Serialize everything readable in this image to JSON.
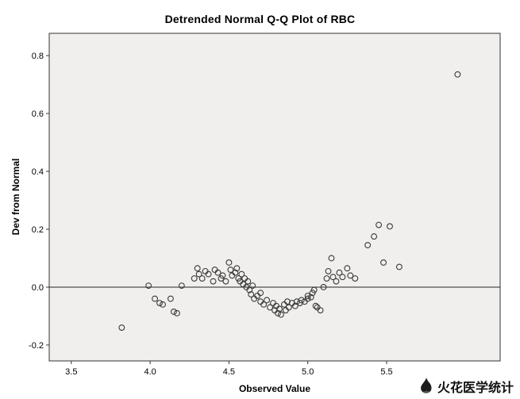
{
  "page": {
    "watermark_text": "火花医学统计"
  },
  "colors": {
    "page_bg": "#ffffff",
    "plot_bg": "#f0efed",
    "frame": "#333333",
    "point": "#3a3a3a",
    "ref_line": "#262626",
    "text": "#000000"
  },
  "chart_data": {
    "type": "scatter",
    "title": "Detrended Normal Q-Q Plot of RBC",
    "xlabel": "Observed Value",
    "ylabel": "Dev from Normal",
    "xlim": [
      3.36,
      6.22
    ],
    "ylim": [
      -0.255,
      0.877
    ],
    "x_ticks": [
      3.5,
      4.0,
      4.5,
      5.0,
      5.5
    ],
    "y_ticks": [
      -0.2,
      0.0,
      0.2,
      0.4,
      0.6,
      0.8
    ],
    "ref_line_y": 0.0,
    "grid": false,
    "legend": null,
    "marker": "open-circle",
    "points": [
      [
        3.82,
        -0.14
      ],
      [
        3.99,
        0.005
      ],
      [
        4.03,
        -0.04
      ],
      [
        4.06,
        -0.055
      ],
      [
        4.08,
        -0.06
      ],
      [
        4.13,
        -0.04
      ],
      [
        4.15,
        -0.085
      ],
      [
        4.17,
        -0.09
      ],
      [
        4.2,
        0.005
      ],
      [
        4.28,
        0.03
      ],
      [
        4.3,
        0.065
      ],
      [
        4.31,
        0.045
      ],
      [
        4.33,
        0.03
      ],
      [
        4.35,
        0.055
      ],
      [
        4.37,
        0.045
      ],
      [
        4.4,
        0.02
      ],
      [
        4.41,
        0.06
      ],
      [
        4.43,
        0.05
      ],
      [
        4.45,
        0.03
      ],
      [
        4.46,
        0.04
      ],
      [
        4.48,
        0.02
      ],
      [
        4.5,
        0.085
      ],
      [
        4.51,
        0.06
      ],
      [
        4.52,
        0.04
      ],
      [
        4.54,
        0.05
      ],
      [
        4.55,
        0.065
      ],
      [
        4.56,
        0.03
      ],
      [
        4.57,
        0.02
      ],
      [
        4.58,
        0.045
      ],
      [
        4.59,
        0.01
      ],
      [
        4.6,
        0.03
      ],
      [
        4.61,
        0.0
      ],
      [
        4.62,
        0.02
      ],
      [
        4.63,
        -0.01
      ],
      [
        4.64,
        -0.025
      ],
      [
        4.65,
        0.005
      ],
      [
        4.66,
        -0.04
      ],
      [
        4.68,
        -0.03
      ],
      [
        4.7,
        -0.02
      ],
      [
        4.7,
        -0.05
      ],
      [
        4.72,
        -0.06
      ],
      [
        4.74,
        -0.045
      ],
      [
        4.76,
        -0.07
      ],
      [
        4.78,
        -0.055
      ],
      [
        4.79,
        -0.08
      ],
      [
        4.8,
        -0.065
      ],
      [
        4.81,
        -0.09
      ],
      [
        4.82,
        -0.075
      ],
      [
        4.83,
        -0.095
      ],
      [
        4.85,
        -0.06
      ],
      [
        4.86,
        -0.08
      ],
      [
        4.87,
        -0.05
      ],
      [
        4.88,
        -0.07
      ],
      [
        4.9,
        -0.055
      ],
      [
        4.92,
        -0.065
      ],
      [
        4.93,
        -0.05
      ],
      [
        4.95,
        -0.055
      ],
      [
        4.96,
        -0.045
      ],
      [
        4.98,
        -0.05
      ],
      [
        5.0,
        -0.04
      ],
      [
        5.0,
        -0.03
      ],
      [
        5.02,
        -0.035
      ],
      [
        5.03,
        -0.02
      ],
      [
        5.04,
        -0.01
      ],
      [
        5.05,
        -0.065
      ],
      [
        5.06,
        -0.07
      ],
      [
        5.08,
        -0.08
      ],
      [
        5.1,
        0.0
      ],
      [
        5.12,
        0.03
      ],
      [
        5.13,
        0.055
      ],
      [
        5.15,
        0.1
      ],
      [
        5.16,
        0.035
      ],
      [
        5.18,
        0.02
      ],
      [
        5.2,
        0.05
      ],
      [
        5.22,
        0.035
      ],
      [
        5.25,
        0.065
      ],
      [
        5.27,
        0.04
      ],
      [
        5.3,
        0.03
      ],
      [
        5.38,
        0.145
      ],
      [
        5.42,
        0.175
      ],
      [
        5.45,
        0.215
      ],
      [
        5.48,
        0.085
      ],
      [
        5.52,
        0.21
      ],
      [
        5.58,
        0.07
      ],
      [
        5.95,
        0.735
      ]
    ]
  }
}
